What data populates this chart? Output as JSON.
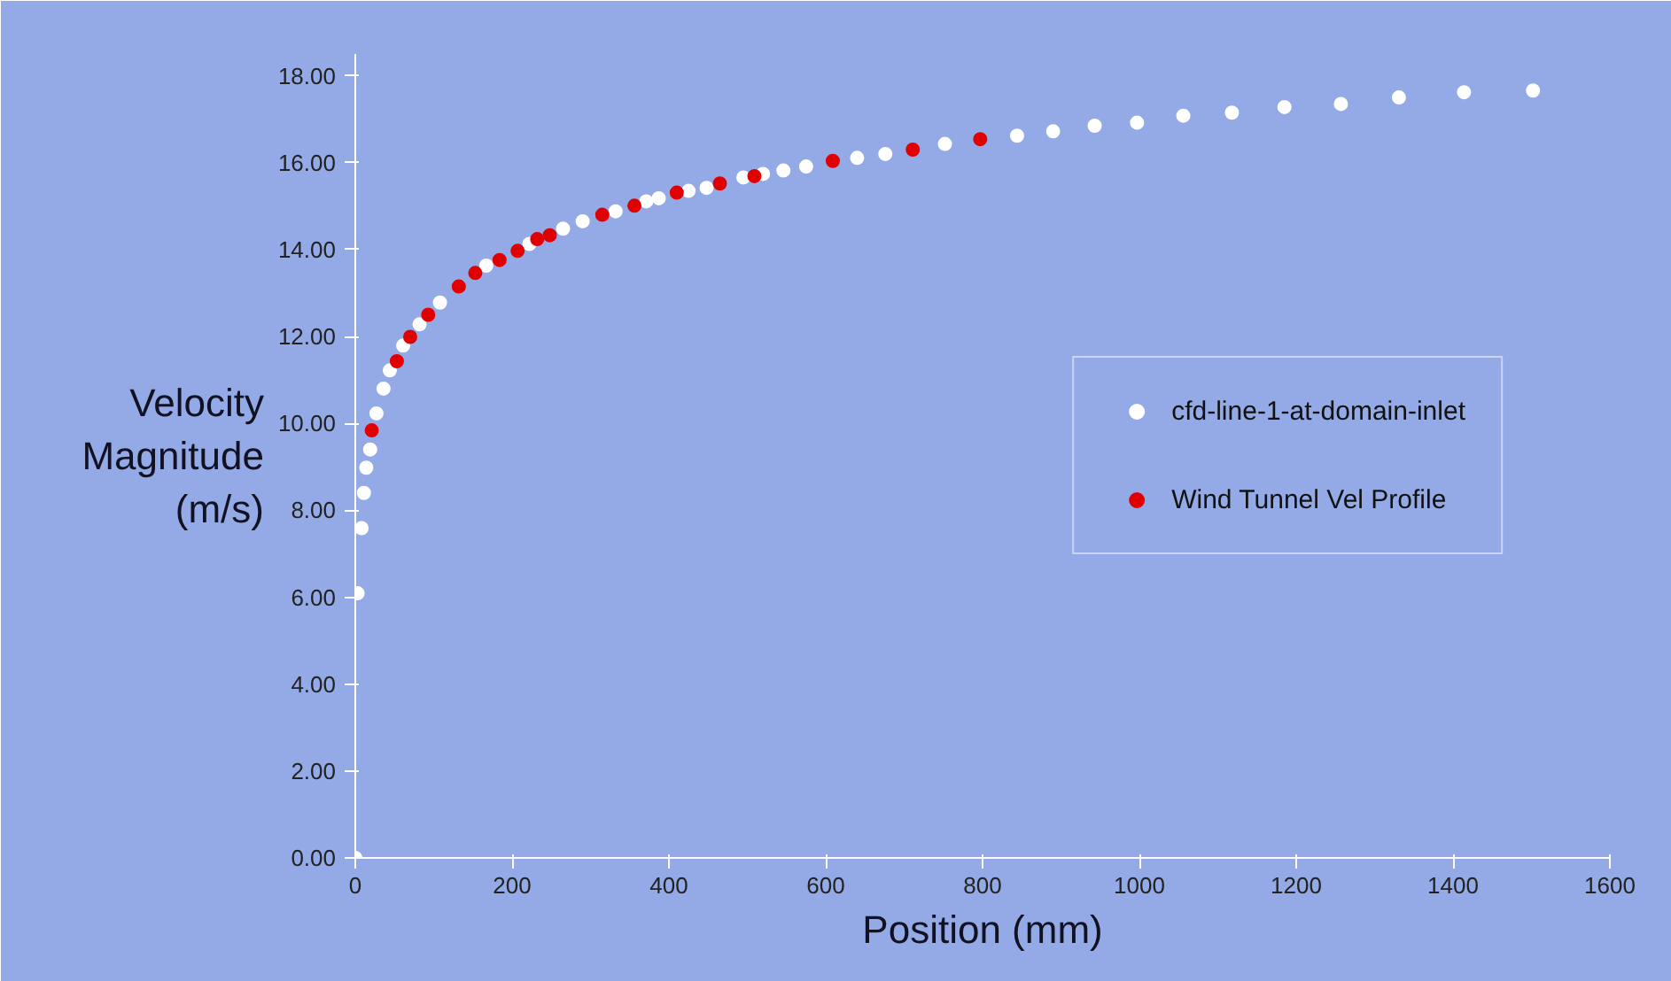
{
  "chart_data": {
    "type": "scatter",
    "xlabel": "Position (mm)",
    "ylabel": "Velocity\nMagnitude\n(m/s)",
    "xlim": [
      0,
      1600
    ],
    "ylim": [
      0,
      18.5
    ],
    "xticks": [
      0,
      200,
      400,
      600,
      800,
      1000,
      1200,
      1400,
      1600
    ],
    "yticks": [
      {
        "value": 0,
        "label": "0.00"
      },
      {
        "value": 2,
        "label": "2.00"
      },
      {
        "value": 4,
        "label": "4.00"
      },
      {
        "value": 6,
        "label": "6.00"
      },
      {
        "value": 8,
        "label": "8.00"
      },
      {
        "value": 10,
        "label": "10.00"
      },
      {
        "value": 12,
        "label": "12.00"
      },
      {
        "value": 14,
        "label": "14.00"
      },
      {
        "value": 16,
        "label": "16.00"
      },
      {
        "value": 18,
        "label": "18.00"
      }
    ],
    "grid": false,
    "legend": "right",
    "marker": "circle",
    "series": [
      {
        "name": "cfd-line-1-at-domain-inlet",
        "color": "#ffffff",
        "x": [
          0,
          3,
          8,
          11,
          14,
          19,
          27,
          36,
          44,
          61,
          82,
          108,
          167,
          222,
          265,
          290,
          332,
          371,
          387,
          425,
          448,
          495,
          520,
          546,
          575,
          640,
          676,
          752,
          844,
          890,
          943,
          997,
          1056,
          1118,
          1185,
          1257,
          1331,
          1414,
          1502
        ],
        "values": [
          0,
          6.09,
          7.59,
          8.4,
          8.98,
          9.4,
          10.23,
          10.8,
          11.22,
          11.79,
          12.28,
          12.78,
          13.63,
          14.13,
          14.48,
          14.65,
          14.88,
          15.11,
          15.18,
          15.35,
          15.42,
          15.66,
          15.74,
          15.82,
          15.91,
          16.11,
          16.2,
          16.43,
          16.62,
          16.72,
          16.85,
          16.92,
          17.08,
          17.15,
          17.28,
          17.35,
          17.5,
          17.62,
          17.66
        ]
      },
      {
        "name": "Wind Tunnel Vel Profile",
        "color": "#e00000",
        "x": [
          21,
          53,
          70,
          93,
          132,
          153,
          184,
          207,
          232,
          248,
          315,
          356,
          410,
          465,
          509,
          609,
          711,
          797
        ],
        "values": [
          9.84,
          11.43,
          11.99,
          12.5,
          13.15,
          13.46,
          13.76,
          13.97,
          14.24,
          14.33,
          14.8,
          15.01,
          15.31,
          15.52,
          15.69,
          16.04,
          16.3,
          16.54
        ]
      }
    ]
  }
}
